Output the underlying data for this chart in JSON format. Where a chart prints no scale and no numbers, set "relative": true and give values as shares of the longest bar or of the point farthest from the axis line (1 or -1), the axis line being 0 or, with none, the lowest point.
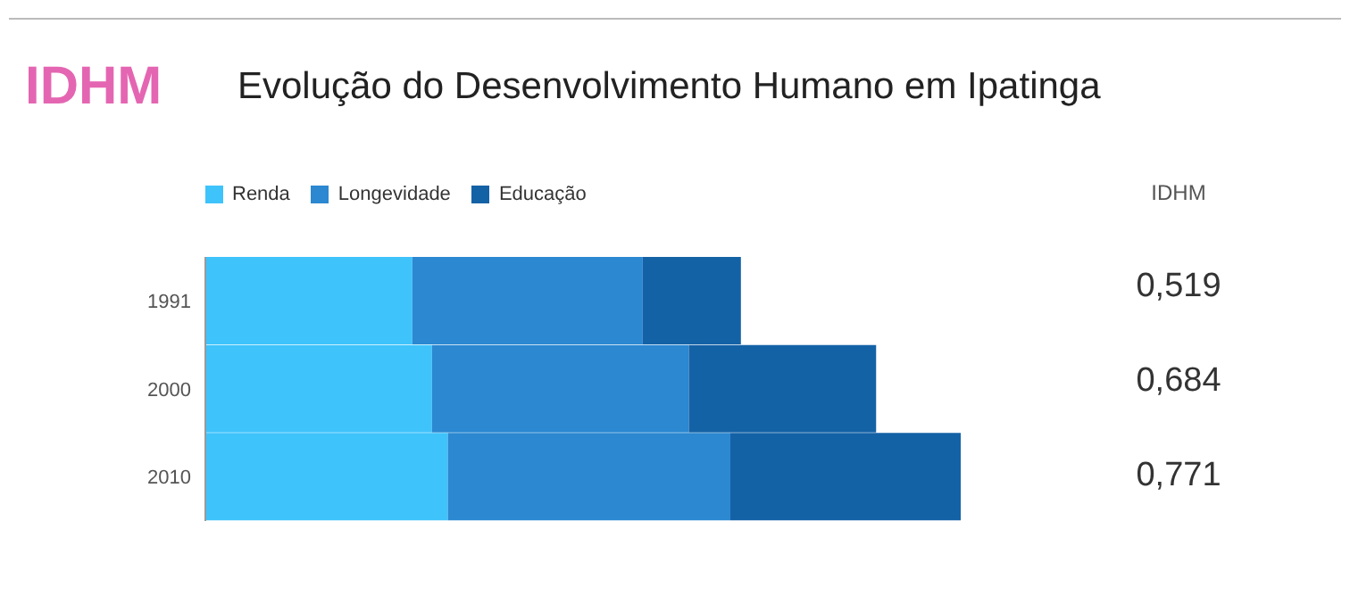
{
  "chart_data": {
    "type": "bar",
    "orientation": "horizontal",
    "stacked": true,
    "relative": true,
    "title": "Evolução do Desenvolvimento Humano em Ipatinga",
    "annotations": [
      "IDHM",
      "IDHM",
      "0,519",
      "0,684",
      "0,771"
    ],
    "categories": [
      "1991",
      "2000",
      "2010"
    ],
    "series": [
      {
        "name": "Renda",
        "color": "#3fc3fb",
        "values": [
          0.274,
          0.3,
          0.321
        ]
      },
      {
        "name": "Longevidade",
        "color": "#2b88d1",
        "values": [
          0.305,
          0.34,
          0.374
        ]
      },
      {
        "name": "Educação",
        "color": "#1462a6",
        "values": [
          0.13,
          0.248,
          0.305
        ]
      }
    ],
    "legend": "top left",
    "grid": false
  }
}
